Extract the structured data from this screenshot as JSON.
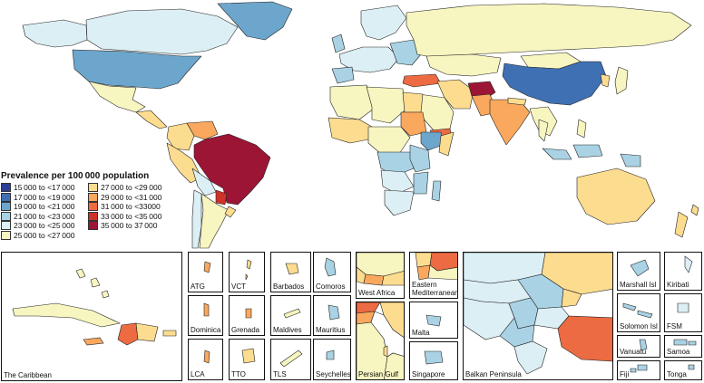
{
  "legend": {
    "title": "Prevalence per 100 000 population",
    "items": [
      {
        "label": "15 000 to <17 000",
        "color": "#2c3f97"
      },
      {
        "label": "17 000 to <19 000",
        "color": "#3f70b3"
      },
      {
        "label": "19 000 to <21 000",
        "color": "#6da6cd"
      },
      {
        "label": "21 000 to <23 000",
        "color": "#a9d2e4"
      },
      {
        "label": "23 000 to <25 000",
        "color": "#dceff5"
      },
      {
        "label": "25 000 to <27 000",
        "color": "#f7f5c0"
      },
      {
        "label": "27 000 to <29 000",
        "color": "#fcdc8f"
      },
      {
        "label": "29 000 to <31 000",
        "color": "#f9a85e"
      },
      {
        "label": "31 000 to <33000",
        "color": "#ec6b42"
      },
      {
        "label": "33 000 to <35 000",
        "color": "#cf3229"
      },
      {
        "label": "35 000 to 37 000",
        "color": "#9c1535"
      }
    ]
  },
  "insets": [
    {
      "id": "caribbean",
      "label": "The Caribbean"
    },
    {
      "id": "atg",
      "label": "ATG"
    },
    {
      "id": "vct",
      "label": "VCT"
    },
    {
      "id": "barbados",
      "label": "Barbados"
    },
    {
      "id": "comoros",
      "label": "Comoros"
    },
    {
      "id": "west-africa",
      "label": "West Africa"
    },
    {
      "id": "eastern-med",
      "label": "Eastern\nMediterranean"
    },
    {
      "id": "balkan",
      "label": "Balkan Peninsula"
    },
    {
      "id": "marshall",
      "label": "Marshall Isl"
    },
    {
      "id": "kiribati",
      "label": "Kiribati"
    },
    {
      "id": "dominica",
      "label": "Dominica"
    },
    {
      "id": "grenada",
      "label": "Grenada"
    },
    {
      "id": "maldives",
      "label": "Maldives"
    },
    {
      "id": "mauritius",
      "label": "Mauritius"
    },
    {
      "id": "malta",
      "label": "Malta"
    },
    {
      "id": "solomon",
      "label": "Solomon Isl"
    },
    {
      "id": "fsm",
      "label": "FSM"
    },
    {
      "id": "lca",
      "label": "LCA"
    },
    {
      "id": "tto",
      "label": "TTO"
    },
    {
      "id": "tls",
      "label": "TLS"
    },
    {
      "id": "seychelles",
      "label": "Seychelles"
    },
    {
      "id": "persian-gulf",
      "label": "Persian Gulf"
    },
    {
      "id": "singapore",
      "label": "Singapore"
    },
    {
      "id": "vanuatu",
      "label": "Vanuatu"
    },
    {
      "id": "samoa",
      "label": "Samoa"
    },
    {
      "id": "fiji",
      "label": "Fiji"
    },
    {
      "id": "tonga",
      "label": "Tonga"
    }
  ]
}
